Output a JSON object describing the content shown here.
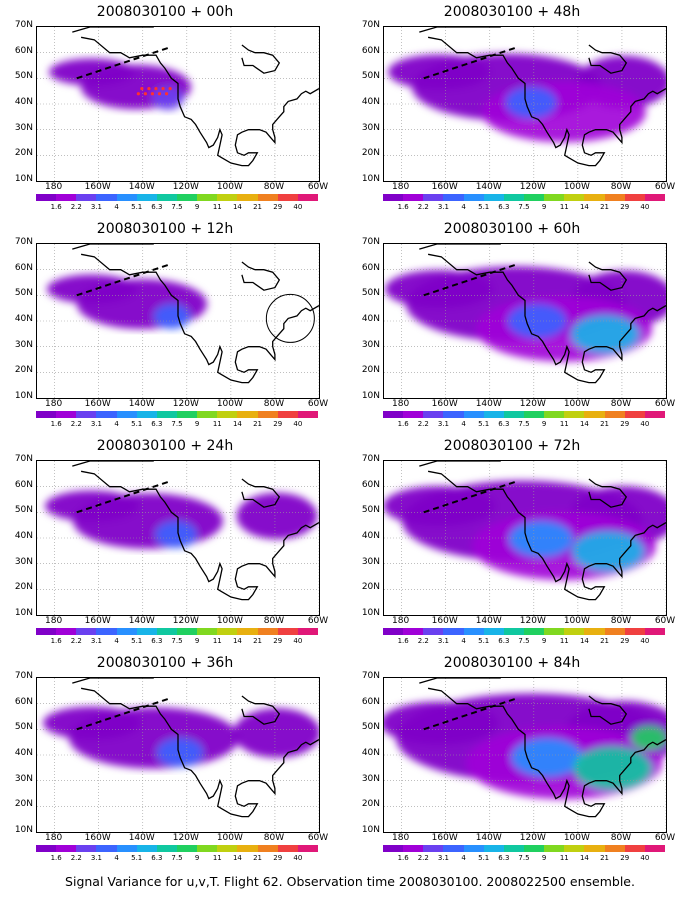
{
  "panels": [
    {
      "title": "2008030100 + 00h",
      "col": 0,
      "row": 0,
      "intensity": 0.15,
      "circle": false,
      "dots": true
    },
    {
      "title": "2008030100 + 48h",
      "col": 1,
      "row": 0,
      "intensity": 0.55,
      "circle": false,
      "dots": false
    },
    {
      "title": "2008030100 + 12h",
      "col": 0,
      "row": 1,
      "intensity": 0.25,
      "circle": true,
      "dots": false
    },
    {
      "title": "2008030100 + 60h",
      "col": 1,
      "row": 1,
      "intensity": 0.7,
      "circle": false,
      "dots": false
    },
    {
      "title": "2008030100 + 24h",
      "col": 0,
      "row": 2,
      "intensity": 0.35,
      "circle": false,
      "dots": false
    },
    {
      "title": "2008030100 + 72h",
      "col": 1,
      "row": 2,
      "intensity": 0.8,
      "circle": false,
      "dots": false
    },
    {
      "title": "2008030100 + 36h",
      "col": 0,
      "row": 3,
      "intensity": 0.45,
      "circle": false,
      "dots": false
    },
    {
      "title": "2008030100 + 84h",
      "col": 1,
      "row": 3,
      "intensity": 0.95,
      "circle": false,
      "dots": false
    }
  ],
  "lat_labels": [
    "70N",
    "60N",
    "50N",
    "40N",
    "30N",
    "20N",
    "10N"
  ],
  "lon_labels": [
    "180",
    "160W",
    "140W",
    "120W",
    "100W",
    "80W",
    "60W"
  ],
  "colorbar": {
    "labels": [
      "1.6",
      "2.2",
      "3.1",
      "4",
      "5.1",
      "6.3",
      "7.5",
      "9",
      "11",
      "14",
      "21",
      "29",
      "40"
    ],
    "colors": [
      "#8000c8",
      "#a000d8",
      "#6a40f0",
      "#3c64ff",
      "#2890ff",
      "#18b4e8",
      "#10c8a0",
      "#20d060",
      "#80d820",
      "#c0d010",
      "#e8b010",
      "#f08020",
      "#f04040",
      "#e01878"
    ]
  },
  "caption": "Signal Variance for u,v,T. Flight 62. Observation time 2008030100. 2008022500 ensemble."
}
